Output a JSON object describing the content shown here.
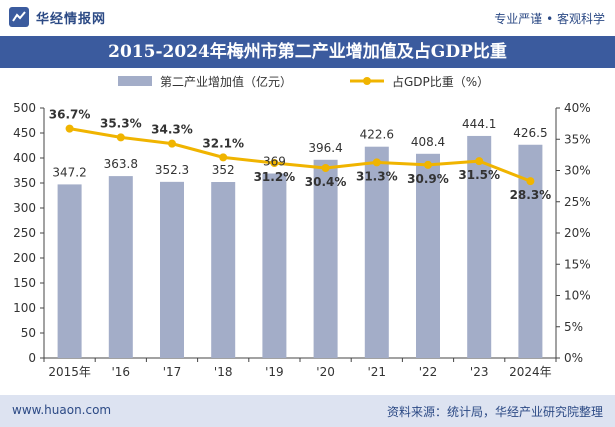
{
  "header": {
    "brand": "华经情报网",
    "tagline": "专业严谨 • 客观科学",
    "title": "2015-2024年梅州市第二产业增加值及占GDP比重"
  },
  "footer": {
    "url": "www.huaon.com",
    "source": "资料来源：统计局，华经产业研究院整理"
  },
  "chart_data": {
    "type": "bar",
    "categories": [
      "2015年",
      "'16",
      "'17",
      "'18",
      "'19",
      "'20",
      "'21",
      "'22",
      "'23",
      "2024年"
    ],
    "series": [
      {
        "name": "第二产业增加值（亿元）",
        "type": "bar",
        "axis": "left",
        "color": "#a3adc8",
        "values": [
          347.2,
          363.8,
          352.3,
          352,
          369,
          396.4,
          422.6,
          408.4,
          444.1,
          426.5
        ],
        "value_labels": [
          "347.2",
          "363.8",
          "352.3",
          "352",
          "369",
          "396.4",
          "422.6",
          "408.4",
          "444.1",
          "426.5"
        ]
      },
      {
        "name": "占GDP比重（%）",
        "type": "line",
        "axis": "right",
        "color": "#f0b400",
        "values": [
          36.7,
          35.3,
          34.3,
          32.1,
          31.2,
          30.4,
          31.3,
          30.9,
          31.5,
          28.3
        ],
        "value_labels": [
          "36.7%",
          "35.3%",
          "34.3%",
          "32.1%",
          "31.2%",
          "30.4%",
          "31.3%",
          "30.9%",
          "31.5%",
          "28.3%"
        ]
      }
    ],
    "y_left": {
      "min": 0,
      "max": 500,
      "ticks": [
        "0",
        "50",
        "100",
        "150",
        "200",
        "250",
        "300",
        "350",
        "400",
        "450",
        "500"
      ]
    },
    "y_right": {
      "min": 0,
      "max": 40,
      "ticks": [
        "0%",
        "5%",
        "10%",
        "15%",
        "20%",
        "25%",
        "30%",
        "35%",
        "40%"
      ]
    },
    "legend_position": "top",
    "grid": false
  }
}
